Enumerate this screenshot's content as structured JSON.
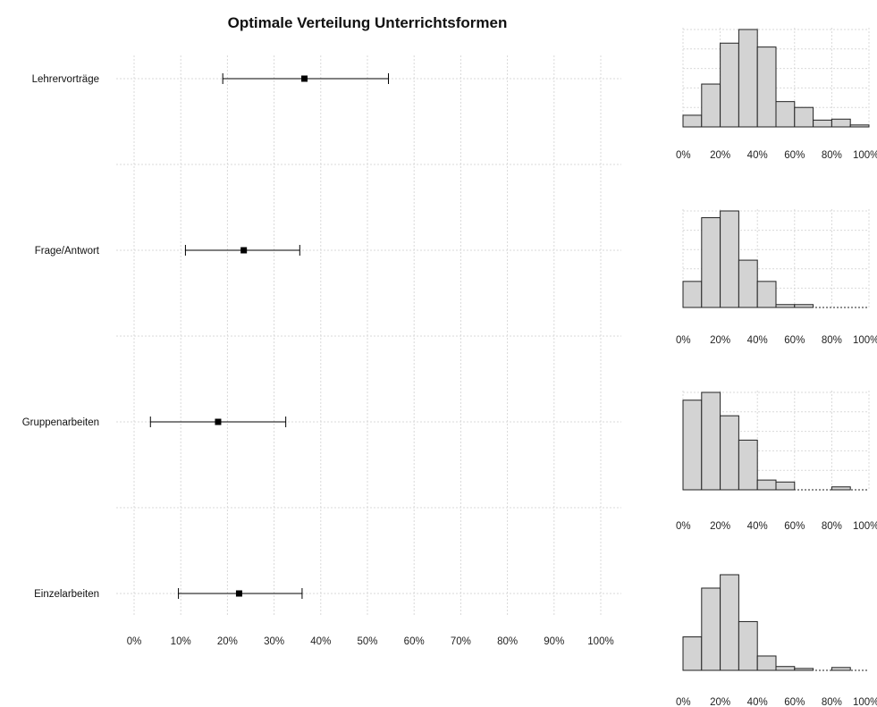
{
  "chart_data": [
    {
      "type": "scatter",
      "title": "Optimale Verteilung Unterrichtsformen",
      "xlabel": "",
      "ylabel": "",
      "xlim": [
        0,
        100
      ],
      "x_unit": "%",
      "x_ticks": [
        "0%",
        "10%",
        "20%",
        "30%",
        "40%",
        "50%",
        "60%",
        "70%",
        "80%",
        "90%",
        "100%"
      ],
      "grid": true,
      "categories": [
        "Lehrervorträge",
        "Frage/Antwort",
        "Gruppenarbeiten",
        "Einzelarbeiten"
      ],
      "points": [
        {
          "category": "Lehrervorträge",
          "mean": 36.5,
          "lower": 19,
          "upper": 54.5
        },
        {
          "category": "Frage/Antwort",
          "mean": 23.5,
          "lower": 11,
          "upper": 35.5
        },
        {
          "category": "Gruppenarbeiten",
          "mean": 18,
          "lower": 3.5,
          "upper": 32.5
        },
        {
          "category": "Einzelarbeiten",
          "mean": 22.5,
          "lower": 9.5,
          "upper": 36
        }
      ]
    },
    {
      "type": "bar",
      "subtype": "histogram",
      "category": "Lehrervorträge",
      "bin_edges": [
        0,
        10,
        20,
        30,
        40,
        50,
        60,
        70,
        80,
        90,
        100
      ],
      "values": [
        0.12,
        0.44,
        0.86,
        1.0,
        0.82,
        0.26,
        0.2,
        0.07,
        0.08,
        0.02
      ],
      "x_ticks": [
        "0%",
        "20%",
        "40%",
        "60%",
        "80%",
        "100%"
      ],
      "grid": true
    },
    {
      "type": "bar",
      "subtype": "histogram",
      "category": "Frage/Antwort",
      "bin_edges": [
        0,
        10,
        20,
        30,
        40,
        50,
        60,
        70,
        80,
        90,
        100
      ],
      "values": [
        0.27,
        0.93,
        1.0,
        0.49,
        0.27,
        0.03,
        0.03,
        0.0,
        0.0,
        0.0
      ],
      "x_ticks": [
        "0%",
        "20%",
        "40%",
        "60%",
        "80%",
        "100%"
      ],
      "grid": true
    },
    {
      "type": "bar",
      "subtype": "histogram",
      "category": "Gruppenarbeiten",
      "bin_edges": [
        0,
        10,
        20,
        30,
        40,
        50,
        60,
        70,
        80,
        90,
        100
      ],
      "values": [
        0.92,
        1.0,
        0.76,
        0.51,
        0.1,
        0.08,
        0.0,
        0.0,
        0.03,
        0.0
      ],
      "x_ticks": [
        "0%",
        "20%",
        "40%",
        "60%",
        "80%",
        "100%"
      ],
      "grid": true
    },
    {
      "type": "bar",
      "subtype": "histogram",
      "category": "Einzelarbeiten",
      "bin_edges": [
        0,
        10,
        20,
        30,
        40,
        50,
        60,
        70,
        80,
        90,
        100
      ],
      "values": [
        0.35,
        0.86,
        1.0,
        0.51,
        0.15,
        0.04,
        0.02,
        0.0,
        0.03,
        0.0
      ],
      "x_ticks": [
        "0%",
        "20%",
        "40%",
        "60%",
        "80%",
        "100%"
      ],
      "grid": false
    }
  ]
}
